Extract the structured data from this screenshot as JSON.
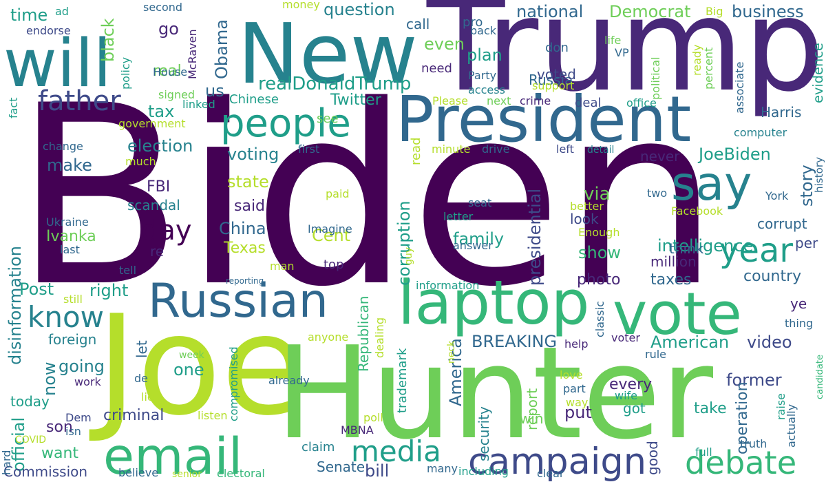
{
  "palette": {
    "c1": "#440154",
    "c2": "#482878",
    "c3": "#3e4a89",
    "c4": "#31688e",
    "c5": "#26828e",
    "c6": "#1f9e89",
    "c7": "#35b779",
    "c8": "#6ece58",
    "c9": "#b5de2b",
    "c10": "#fde725"
  },
  "words": [
    {
      "text": "Biden",
      "color": "c1"
    },
    {
      "text": "Trump",
      "color": "c2"
    },
    {
      "text": "Joe",
      "color": "c9"
    },
    {
      "text": "Hunter",
      "color": "c8"
    },
    {
      "text": "New",
      "color": "c5"
    },
    {
      "text": "will",
      "color": "c5"
    },
    {
      "text": "President",
      "color": "c4"
    },
    {
      "text": "laptop",
      "color": "c7"
    },
    {
      "text": "vote",
      "color": "c7"
    },
    {
      "text": "email",
      "color": "c7"
    },
    {
      "text": "Russian",
      "color": "c4"
    },
    {
      "text": "people",
      "color": "c6"
    },
    {
      "text": "say",
      "color": "c5"
    },
    {
      "text": "campaign",
      "color": "c3"
    },
    {
      "text": "debate",
      "color": "c7"
    },
    {
      "text": "year",
      "color": "c6"
    },
    {
      "text": "father",
      "color": "c3"
    },
    {
      "text": "know",
      "color": "c5"
    },
    {
      "text": "media",
      "color": "c6"
    },
    {
      "text": "day",
      "color": "c1"
    },
    {
      "text": "realDonaldTrump",
      "color": "c6"
    },
    {
      "text": "question",
      "color": "c5"
    },
    {
      "text": "national",
      "color": "c4"
    },
    {
      "text": "Democrat",
      "color": "c8"
    },
    {
      "text": "business",
      "color": "c4"
    },
    {
      "text": "Obama",
      "color": "c4"
    },
    {
      "text": "black",
      "color": "c8"
    },
    {
      "text": "election",
      "color": "c5"
    },
    {
      "text": "voting",
      "color": "c5"
    },
    {
      "text": "state",
      "color": "c9"
    },
    {
      "text": "make",
      "color": "c4"
    },
    {
      "text": "FBI",
      "color": "c2"
    },
    {
      "text": "scandal",
      "color": "c5"
    },
    {
      "text": "said",
      "color": "c2"
    },
    {
      "text": "China",
      "color": "c4"
    },
    {
      "text": "Cent",
      "color": "c9"
    },
    {
      "text": "Texas",
      "color": "c9"
    },
    {
      "text": "Ivanka",
      "color": "c8"
    },
    {
      "text": "Ukraine",
      "color": "c4"
    },
    {
      "text": "intelligence",
      "color": "c6"
    },
    {
      "text": "JoeBiden",
      "color": "c6"
    },
    {
      "text": "Harris",
      "color": "c4"
    },
    {
      "text": "story",
      "color": "c4"
    },
    {
      "text": "corrupt",
      "color": "c4"
    },
    {
      "text": "per",
      "color": "c3"
    },
    {
      "text": "country",
      "color": "c4"
    },
    {
      "text": "taxes",
      "color": "c4"
    },
    {
      "text": "million",
      "color": "c2"
    },
    {
      "text": "think",
      "color": "c4"
    },
    {
      "text": "photo",
      "color": "c2"
    },
    {
      "text": "show",
      "color": "c7"
    },
    {
      "text": "look",
      "color": "c3"
    },
    {
      "text": "family",
      "color": "c6"
    },
    {
      "text": "corruption",
      "color": "c6"
    },
    {
      "text": "presidential",
      "color": "c3"
    },
    {
      "text": "via",
      "color": "c8"
    },
    {
      "text": "Russia",
      "color": "c4"
    },
    {
      "text": "voted",
      "color": "c3"
    },
    {
      "text": "plan",
      "color": "c6"
    },
    {
      "text": "even",
      "color": "c8"
    },
    {
      "text": "need",
      "color": "c2"
    },
    {
      "text": "Party",
      "color": "c4"
    },
    {
      "text": "access",
      "color": "c5"
    },
    {
      "text": "go",
      "color": "c2"
    },
    {
      "text": "real",
      "color": "c8"
    },
    {
      "text": "us",
      "color": "c4"
    },
    {
      "text": "tax",
      "color": "c6"
    },
    {
      "text": "Chinese",
      "color": "c6"
    },
    {
      "text": "Twitter",
      "color": "c6"
    },
    {
      "text": "see",
      "color": "c8"
    },
    {
      "text": "Post",
      "color": "c6"
    },
    {
      "text": "right",
      "color": "c6"
    },
    {
      "text": "now",
      "color": "c5"
    },
    {
      "text": "foreign",
      "color": "c5"
    },
    {
      "text": "going",
      "color": "c5"
    },
    {
      "text": "one",
      "color": "c6"
    },
    {
      "text": "official",
      "color": "c6"
    },
    {
      "text": "disinformation",
      "color": "c5"
    },
    {
      "text": "American",
      "color": "c6"
    },
    {
      "text": "BREAKING",
      "color": "c4"
    },
    {
      "text": "video",
      "color": "c3"
    },
    {
      "text": "America",
      "color": "c4"
    },
    {
      "text": "Republican",
      "color": "c7"
    },
    {
      "text": "trademark",
      "color": "c6"
    },
    {
      "text": "security",
      "color": "c5"
    },
    {
      "text": "win",
      "color": "c8"
    },
    {
      "text": "report",
      "color": "c8"
    },
    {
      "text": "put",
      "color": "c2"
    },
    {
      "text": "got",
      "color": "c6"
    },
    {
      "text": "take",
      "color": "c6"
    },
    {
      "text": "every",
      "color": "c2"
    },
    {
      "text": "former",
      "color": "c3"
    },
    {
      "text": "operation",
      "color": "c4"
    },
    {
      "text": "ye",
      "color": "c2"
    },
    {
      "text": "son",
      "color": "c2"
    },
    {
      "text": "criminal",
      "color": "c3"
    },
    {
      "text": "want",
      "color": "c7"
    },
    {
      "text": "today",
      "color": "c6"
    },
    {
      "text": "Commission",
      "color": "c3"
    },
    {
      "text": "bill",
      "color": "c3"
    },
    {
      "text": "Senate",
      "color": "c4"
    },
    {
      "text": "claim",
      "color": "c5"
    },
    {
      "text": "good",
      "color": "c3"
    },
    {
      "text": "time",
      "color": "c6"
    },
    {
      "text": "ad",
      "color": "c6"
    },
    {
      "text": "endorse",
      "color": "c3"
    },
    {
      "text": "second",
      "color": "c4"
    },
    {
      "text": "money",
      "color": "c9"
    },
    {
      "text": "pro",
      "color": "c4"
    },
    {
      "text": "Big",
      "color": "c9"
    },
    {
      "text": "back",
      "color": "c4"
    },
    {
      "text": "call",
      "color": "c4"
    },
    {
      "text": "McRaven",
      "color": "c2"
    },
    {
      "text": "policy",
      "color": "c6"
    },
    {
      "text": "House",
      "color": "c4"
    },
    {
      "text": "signed",
      "color": "c8"
    },
    {
      "text": "linked",
      "color": "c6"
    },
    {
      "text": "government",
      "color": "c9"
    },
    {
      "text": "fact",
      "color": "c6"
    },
    {
      "text": "change",
      "color": "c4"
    },
    {
      "text": "much",
      "color": "c9"
    },
    {
      "text": "first",
      "color": "c4"
    },
    {
      "text": "minute",
      "color": "c9"
    },
    {
      "text": "drive",
      "color": "c4"
    },
    {
      "text": "left",
      "color": "c3"
    },
    {
      "text": "detail",
      "color": "c5"
    },
    {
      "text": "don",
      "color": "c4"
    },
    {
      "text": "life",
      "color": "c8"
    },
    {
      "text": "VP",
      "color": "c4"
    },
    {
      "text": "support",
      "color": "c9"
    },
    {
      "text": "political",
      "color": "c8"
    },
    {
      "text": "ready",
      "color": "c9"
    },
    {
      "text": "percent",
      "color": "c8"
    },
    {
      "text": "associate",
      "color": "c4"
    },
    {
      "text": "evidence",
      "color": "c6"
    },
    {
      "text": "Please",
      "color": "c9"
    },
    {
      "text": "next",
      "color": "c8"
    },
    {
      "text": "crime",
      "color": "c2"
    },
    {
      "text": "deal",
      "color": "c3"
    },
    {
      "text": "office",
      "color": "c6"
    },
    {
      "text": "computer",
      "color": "c5"
    },
    {
      "text": "history",
      "color": "c4"
    },
    {
      "text": "York",
      "color": "c4"
    },
    {
      "text": "two",
      "color": "c4"
    },
    {
      "text": "Facebook",
      "color": "c9"
    },
    {
      "text": "better",
      "color": "c9"
    },
    {
      "text": "Enough",
      "color": "c9"
    },
    {
      "text": "never",
      "color": "c2"
    },
    {
      "text": "seat",
      "color": "c4"
    },
    {
      "text": "letter",
      "color": "c6"
    },
    {
      "text": "paid",
      "color": "c9"
    },
    {
      "text": "read",
      "color": "c9"
    },
    {
      "text": "Imagine",
      "color": "c4"
    },
    {
      "text": "top",
      "color": "c2"
    },
    {
      "text": "re",
      "color": "c2"
    },
    {
      "text": "answer",
      "color": "c4"
    },
    {
      "text": "guy",
      "color": "c9"
    },
    {
      "text": "last",
      "color": "c4"
    },
    {
      "text": "tell",
      "color": "c4"
    },
    {
      "text": "man",
      "color": "c9"
    },
    {
      "text": "reporting",
      "color": "c4"
    },
    {
      "text": "information",
      "color": "c6"
    },
    {
      "text": "still",
      "color": "c9"
    },
    {
      "text": "let",
      "color": "c4"
    },
    {
      "text": "anyone",
      "color": "c9"
    },
    {
      "text": "dealing",
      "color": "c9"
    },
    {
      "text": "classic",
      "color": "c4"
    },
    {
      "text": "thing",
      "color": "c4"
    },
    {
      "text": "help",
      "color": "c2"
    },
    {
      "text": "voter",
      "color": "c2"
    },
    {
      "text": "rule",
      "color": "c4"
    },
    {
      "text": "neck",
      "color": "c9"
    },
    {
      "text": "week",
      "color": "c8"
    },
    {
      "text": "work",
      "color": "c2"
    },
    {
      "text": "de",
      "color": "c4"
    },
    {
      "text": "lie",
      "color": "c9"
    },
    {
      "text": "compromised",
      "color": "c6"
    },
    {
      "text": "already",
      "color": "c4"
    },
    {
      "text": "poll",
      "color": "c9"
    },
    {
      "text": "love",
      "color": "c9"
    },
    {
      "text": "part",
      "color": "c4"
    },
    {
      "text": "wife",
      "color": "c6"
    },
    {
      "text": "way",
      "color": "c9"
    },
    {
      "text": "raise",
      "color": "c6"
    },
    {
      "text": "actually",
      "color": "c4"
    },
    {
      "text": "candidate",
      "color": "c7"
    },
    {
      "text": "Dem",
      "color": "c3"
    },
    {
      "text": "isn",
      "color": "c4"
    },
    {
      "text": "COVID",
      "color": "c9"
    },
    {
      "text": "hard",
      "color": "c4"
    },
    {
      "text": "listen",
      "color": "c9"
    },
    {
      "text": "MBNA",
      "color": "c2"
    },
    {
      "text": "believe",
      "color": "c4"
    },
    {
      "text": "senior",
      "color": "c9"
    },
    {
      "text": "electoral",
      "color": "c7"
    },
    {
      "text": "many",
      "color": "c4"
    },
    {
      "text": "including",
      "color": "c6"
    },
    {
      "text": "clear",
      "color": "c4"
    },
    {
      "text": "full",
      "color": "c6"
    },
    {
      "text": "truth",
      "color": "c4"
    }
  ]
}
